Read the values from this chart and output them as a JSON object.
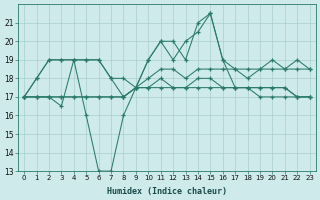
{
  "xlabel": "Humidex (Indice chaleur)",
  "x": [
    0,
    1,
    2,
    3,
    4,
    5,
    6,
    7,
    8,
    9,
    10,
    11,
    12,
    13,
    14,
    15,
    16,
    17,
    18,
    19,
    20,
    21,
    22,
    23
  ],
  "series": [
    [
      17,
      18,
      19,
      19,
      19,
      19,
      19,
      18,
      18,
      17.5,
      18,
      18.5,
      18.5,
      18,
      18.5,
      18.5,
      18.5,
      18.5,
      18.5,
      18.5,
      18.5,
      18.5,
      18.5,
      18.5
    ],
    [
      17,
      17,
      17,
      16.5,
      19,
      16,
      13,
      13,
      16,
      17.5,
      19,
      20,
      19,
      20,
      20.5,
      21.5,
      19,
      17.5,
      17.5,
      17,
      17,
      17,
      17,
      17
    ],
    [
      17,
      18,
      19,
      19,
      19,
      19,
      19,
      18,
      17,
      17.5,
      19,
      20,
      20,
      19,
      21,
      21.5,
      19,
      18.5,
      18,
      18.5,
      19,
      18.5,
      19,
      18.5
    ],
    [
      17,
      17,
      17,
      17,
      17,
      17,
      17,
      17,
      17,
      17.5,
      17.5,
      18,
      17.5,
      17.5,
      18,
      18,
      17.5,
      17.5,
      17.5,
      17.5,
      17.5,
      17.5,
      17,
      17
    ],
    [
      17,
      17,
      17,
      17,
      17,
      17,
      17,
      17,
      17,
      17.5,
      17.5,
      17.5,
      17.5,
      17.5,
      17.5,
      17.5,
      17.5,
      17.5,
      17.5,
      17.5,
      17.5,
      17.5,
      17,
      17
    ]
  ],
  "line_color": "#2a7a6a",
  "bg_color": "#ceeaea",
  "grid_color": "#aacece",
  "ylim_min": 13,
  "ylim_max": 22,
  "yticks": [
    13,
    14,
    15,
    16,
    17,
    18,
    19,
    20,
    21
  ],
  "marker": "+",
  "markersize": 3.5,
  "linewidth": 0.75
}
